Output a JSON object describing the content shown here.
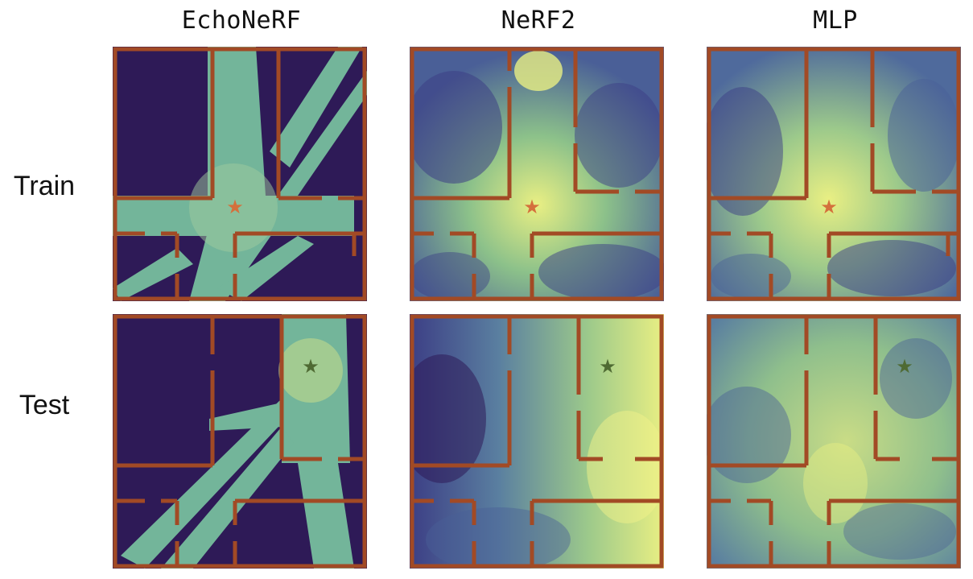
{
  "columns": [
    {
      "title": "EchoNeRF"
    },
    {
      "title": "NeRF2"
    },
    {
      "title": "MLP"
    }
  ],
  "rows": [
    {
      "label": "Train"
    },
    {
      "label": "Test"
    }
  ],
  "colors": {
    "wall": "#a24a25",
    "dark": "#2e1a57",
    "teal": "#73b59a",
    "yellow": "#e9ef83",
    "mid_blue": "#4a5f97",
    "star_train": "#d4703c",
    "star_test": "#4f6a33"
  }
}
